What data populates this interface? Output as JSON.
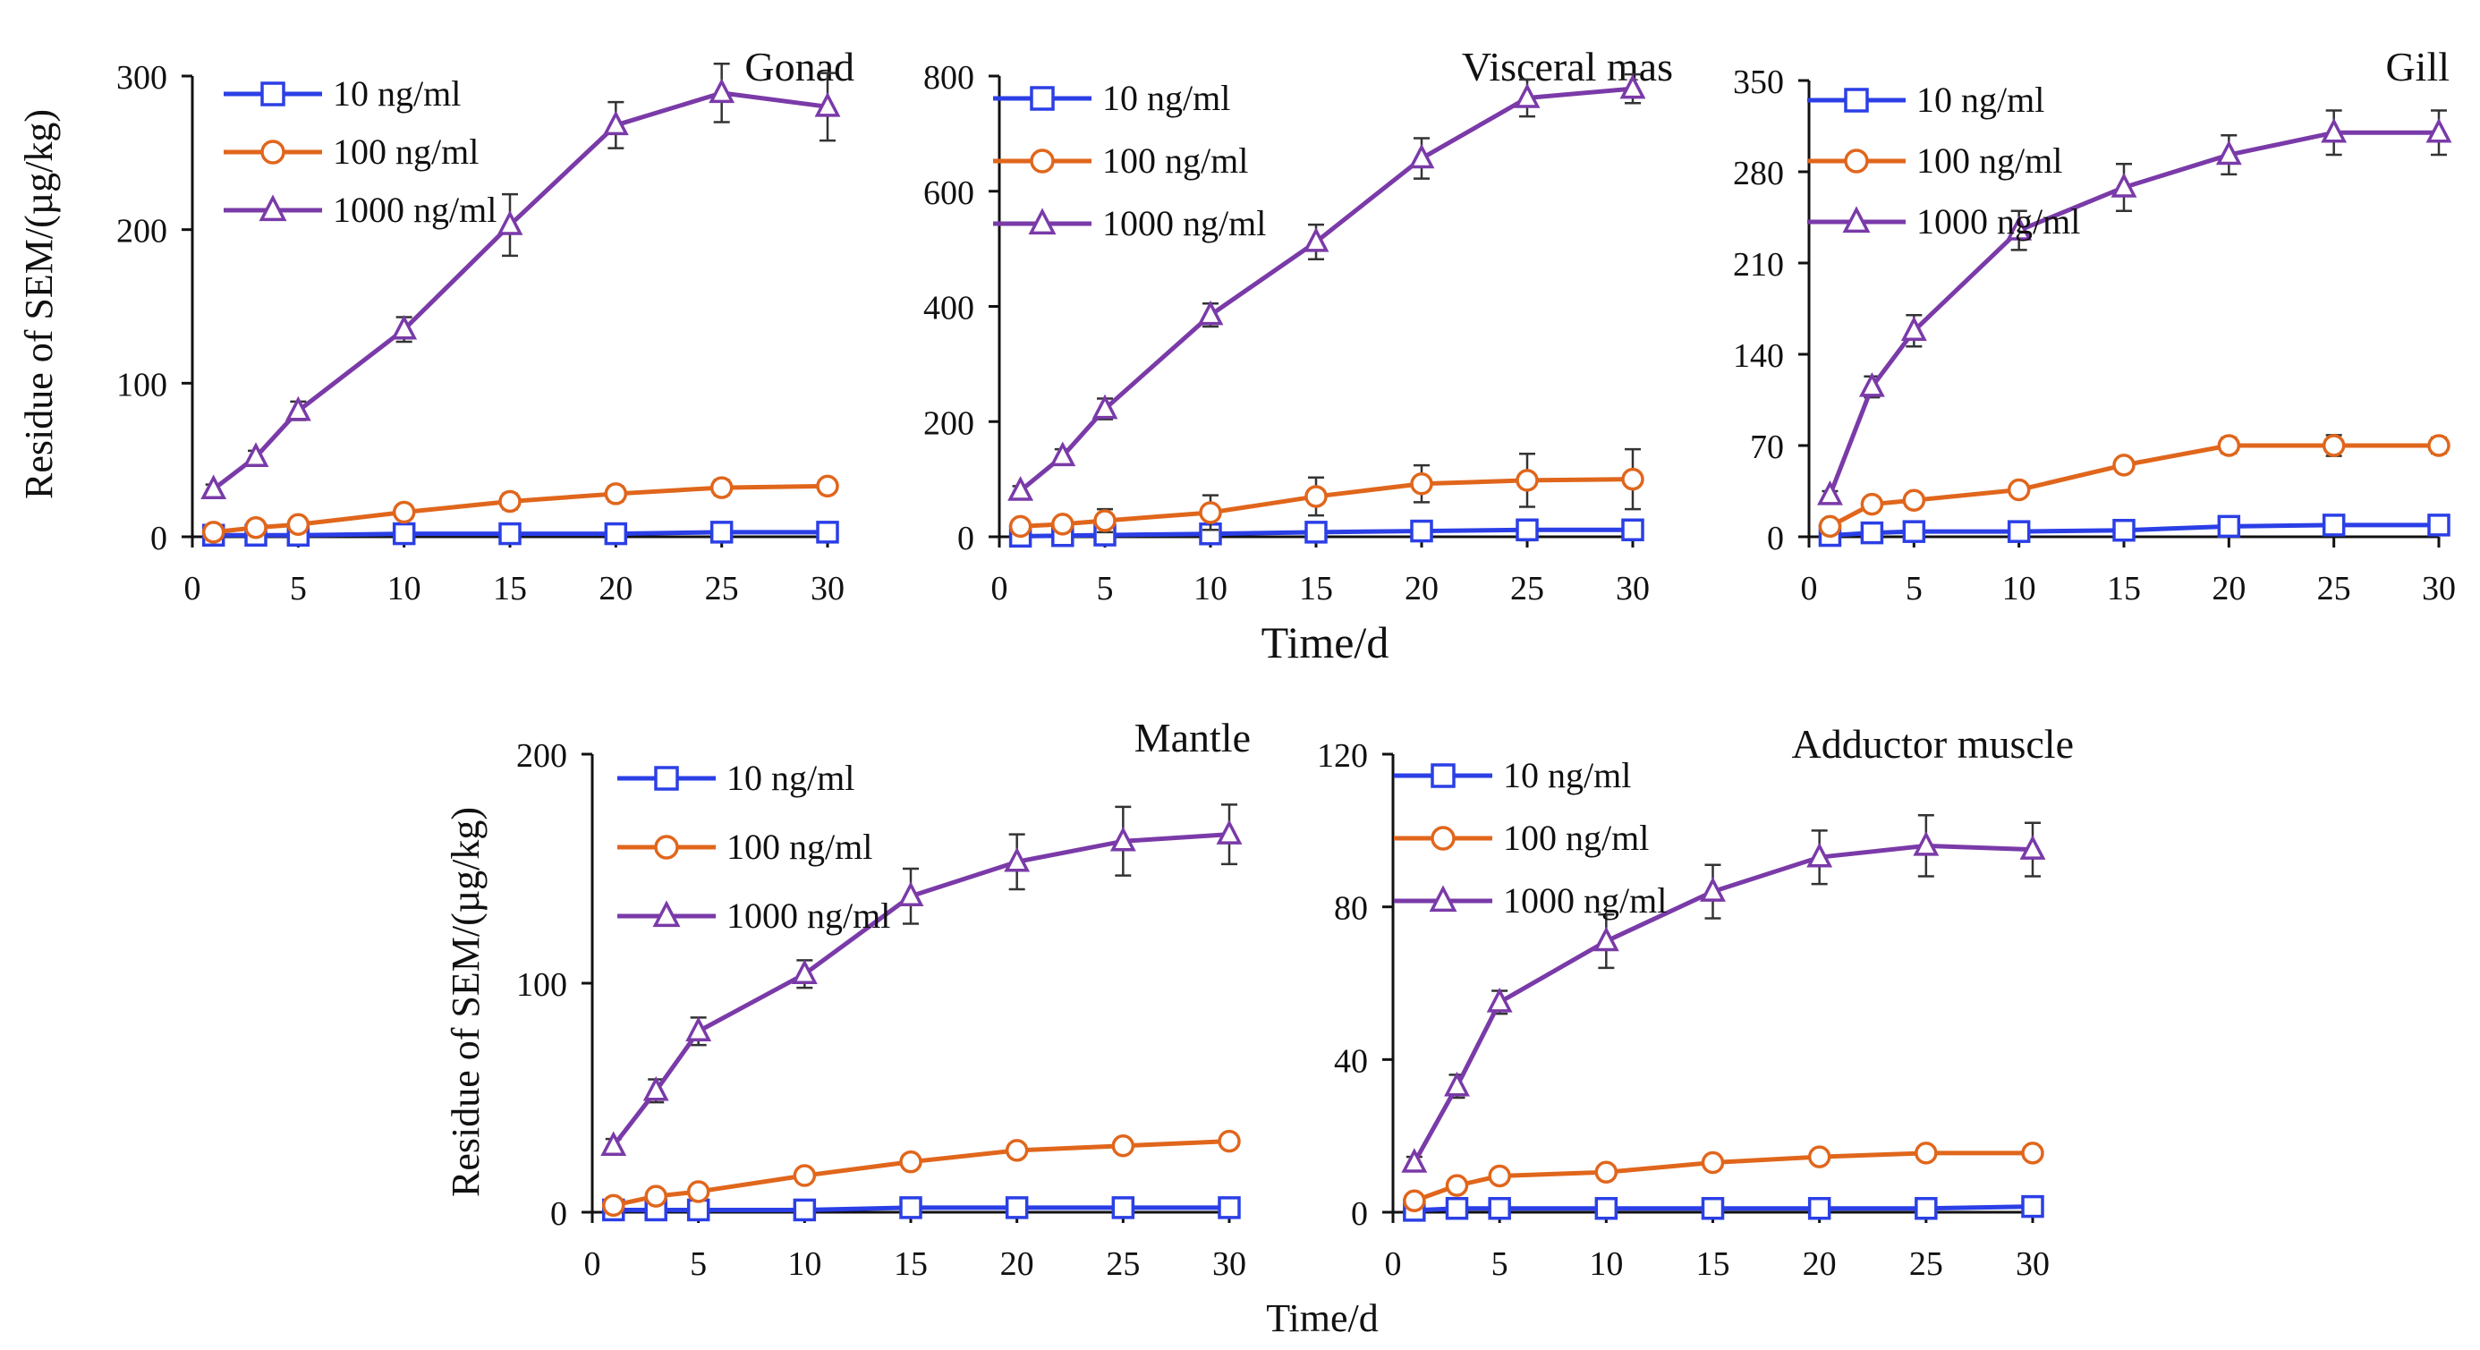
{
  "figure": {
    "y_axis_label": "Residue of SEM/(µg/kg)",
    "x_axis_label": "Time/d"
  },
  "colors": {
    "10 ng/ml": "#2b3fe6",
    "100 ng/ml": "#e0661c",
    "1000 ng/ml": "#7a3aa8",
    "axis": "#111111",
    "error_bar": "#333333"
  },
  "chart_data": [
    {
      "type": "line",
      "title": "Gonad",
      "xlabel": "",
      "ylabel": "Residue of SEM/(µg/kg)",
      "x": [
        1,
        3,
        5,
        10,
        15,
        20,
        25,
        30
      ],
      "xticks": [
        0,
        5,
        10,
        15,
        20,
        25,
        30
      ],
      "xlim": [
        0,
        30
      ],
      "yticks": [
        0,
        100,
        200,
        300
      ],
      "ylim": [
        0,
        300
      ],
      "series": [
        {
          "name": "10 ng/ml",
          "marker": "square",
          "values": [
            1,
            1,
            1,
            2,
            2,
            2,
            3,
            3
          ],
          "errors": [
            0,
            0,
            0,
            0,
            0,
            0,
            0,
            0
          ]
        },
        {
          "name": "100 ng/ml",
          "marker": "circle",
          "values": [
            3,
            6,
            8,
            16,
            23,
            28,
            32,
            33
          ],
          "errors": [
            0,
            0,
            0,
            4,
            5,
            5,
            5,
            4
          ]
        },
        {
          "name": "1000 ng/ml",
          "marker": "triangle",
          "values": [
            31,
            52,
            82,
            135,
            203,
            268,
            289,
            280
          ],
          "errors": [
            3,
            4,
            6,
            8,
            20,
            15,
            19,
            22
          ]
        }
      ]
    },
    {
      "type": "line",
      "title": "Visceral mas",
      "xlabel": "Time/d",
      "ylabel": "",
      "x": [
        1,
        3,
        5,
        10,
        15,
        20,
        25,
        30
      ],
      "xticks": [
        0,
        5,
        10,
        15,
        20,
        25,
        30
      ],
      "xlim": [
        0,
        30
      ],
      "yticks": [
        0,
        200,
        400,
        600,
        800
      ],
      "ylim": [
        0,
        800
      ],
      "series": [
        {
          "name": "10 ng/ml",
          "marker": "square",
          "values": [
            1,
            2,
            3,
            5,
            8,
            10,
            12,
            12
          ],
          "errors": [
            0,
            0,
            0,
            0,
            0,
            12,
            18,
            15
          ]
        },
        {
          "name": "100 ng/ml",
          "marker": "circle",
          "values": [
            18,
            22,
            28,
            42,
            70,
            92,
            98,
            100
          ],
          "errors": [
            5,
            7,
            20,
            30,
            33,
            32,
            46,
            52
          ]
        },
        {
          "name": "1000 ng/ml",
          "marker": "triangle",
          "values": [
            80,
            140,
            222,
            385,
            512,
            657,
            762,
            778
          ],
          "errors": [
            8,
            12,
            18,
            20,
            30,
            35,
            32,
            25
          ]
        }
      ]
    },
    {
      "type": "line",
      "title": "Gill",
      "xlabel": "",
      "ylabel": "",
      "x": [
        1,
        3,
        5,
        10,
        15,
        20,
        25,
        30
      ],
      "xticks": [
        0,
        5,
        10,
        15,
        20,
        25,
        30
      ],
      "xlim": [
        0,
        30
      ],
      "yticks": [
        0,
        70,
        140,
        210,
        280,
        350
      ],
      "ylim": [
        0,
        350
      ],
      "series": [
        {
          "name": "10 ng/ml",
          "marker": "square",
          "values": [
            1,
            3,
            4,
            4,
            5,
            8,
            9,
            9
          ],
          "errors": [
            0,
            0,
            0,
            0,
            0,
            0,
            0,
            0
          ]
        },
        {
          "name": "100 ng/ml",
          "marker": "circle",
          "values": [
            8,
            25,
            28,
            36,
            55,
            70,
            70,
            70
          ],
          "errors": [
            2,
            3,
            4,
            4,
            5,
            6,
            8,
            6
          ]
        },
        {
          "name": "1000 ng/ml",
          "marker": "triangle",
          "values": [
            32,
            115,
            158,
            235,
            268,
            293,
            310,
            310
          ],
          "errors": [
            3,
            8,
            12,
            15,
            18,
            15,
            17,
            17
          ]
        }
      ]
    },
    {
      "type": "line",
      "title": "Mantle",
      "xlabel": "",
      "ylabel": "Residue of SEM/(µg/kg)",
      "x": [
        1,
        3,
        5,
        10,
        15,
        20,
        25,
        30
      ],
      "xticks": [
        0,
        5,
        10,
        15,
        20,
        25,
        30
      ],
      "xlim": [
        0,
        30
      ],
      "yticks": [
        0,
        100,
        200
      ],
      "ylim": [
        0,
        200
      ],
      "series": [
        {
          "name": "10 ng/ml",
          "marker": "square",
          "values": [
            1,
            1,
            1,
            1,
            2,
            2,
            2,
            2
          ],
          "errors": [
            0,
            0,
            0,
            0,
            0,
            0,
            0,
            0
          ]
        },
        {
          "name": "100 ng/ml",
          "marker": "circle",
          "values": [
            3,
            7,
            9,
            16,
            22,
            27,
            29,
            31
          ],
          "errors": [
            0,
            0,
            0,
            0,
            0,
            0,
            0,
            0
          ]
        },
        {
          "name": "1000 ng/ml",
          "marker": "triangle",
          "values": [
            29,
            53,
            79,
            104,
            138,
            153,
            162,
            165
          ],
          "errors": [
            3,
            5,
            6,
            6,
            12,
            12,
            15,
            13
          ]
        }
      ]
    },
    {
      "type": "line",
      "title": "Adductor muscle",
      "xlabel": "Time/d",
      "ylabel": "",
      "x": [
        1,
        3,
        5,
        10,
        15,
        20,
        25,
        30
      ],
      "xticks": [
        0,
        5,
        10,
        15,
        20,
        25,
        30
      ],
      "xlim": [
        0,
        30
      ],
      "yticks": [
        0,
        40,
        80,
        120
      ],
      "ylim": [
        0,
        120
      ],
      "series": [
        {
          "name": "10 ng/ml",
          "marker": "square",
          "values": [
            0.5,
            1,
            1,
            1,
            1,
            1,
            1,
            1.5
          ],
          "errors": [
            0,
            0,
            0,
            0,
            0,
            0,
            0,
            0
          ]
        },
        {
          "name": "100 ng/ml",
          "marker": "circle",
          "values": [
            3,
            7,
            9.5,
            10.5,
            13,
            14.5,
            15.5,
            15.5
          ],
          "errors": [
            0,
            0,
            0,
            0,
            0,
            0,
            0,
            0
          ]
        },
        {
          "name": "1000 ng/ml",
          "marker": "triangle",
          "values": [
            13,
            33,
            55,
            71,
            84,
            93,
            96,
            95
          ],
          "errors": [
            1.5,
            3,
            3,
            7,
            7,
            7,
            8,
            7
          ]
        }
      ]
    }
  ]
}
